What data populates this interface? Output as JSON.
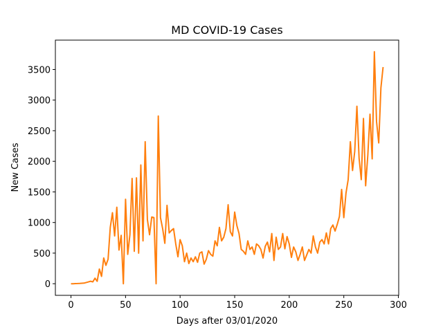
{
  "chart_data": {
    "type": "line",
    "title": "MD COVID-19 Cases",
    "xlabel": "Days after 03/01/2020",
    "ylabel": "New Cases",
    "color": "#ff7f0e",
    "x": [
      0,
      2,
      4,
      6,
      8,
      10,
      12,
      14,
      16,
      18,
      20,
      22,
      24,
      26,
      28,
      30,
      32,
      34,
      36,
      38,
      40,
      42,
      44,
      46,
      48,
      50,
      52,
      54,
      56,
      58,
      60,
      62,
      64,
      66,
      68,
      70,
      72,
      74,
      76,
      78,
      80,
      82,
      84,
      86,
      88,
      90,
      92,
      94,
      96,
      98,
      100,
      102,
      104,
      106,
      108,
      110,
      112,
      114,
      116,
      118,
      120,
      122,
      124,
      126,
      128,
      130,
      132,
      134,
      136,
      138,
      140,
      142,
      144,
      146,
      148,
      150,
      152,
      154,
      156,
      158,
      160,
      162,
      164,
      166,
      168,
      170,
      172,
      174,
      176,
      178,
      180,
      182,
      184,
      186,
      188,
      190,
      192,
      194,
      196,
      198,
      200,
      202,
      204,
      206,
      208,
      210,
      212,
      214,
      216,
      218,
      220,
      222,
      224,
      226,
      228,
      230,
      232,
      234,
      236,
      238,
      240,
      242,
      244,
      246,
      248,
      250,
      252,
      254,
      256,
      258,
      260,
      262,
      264,
      266,
      268,
      270,
      272,
      274,
      276,
      278,
      280,
      282,
      284,
      286
    ],
    "values": [
      0,
      0,
      2,
      3,
      5,
      8,
      10,
      20,
      30,
      40,
      30,
      90,
      40,
      240,
      120,
      420,
      300,
      400,
      920,
      1160,
      780,
      1250,
      550,
      790,
      0,
      1380,
      480,
      800,
      1720,
      530,
      1730,
      500,
      1940,
      700,
      2320,
      1050,
      800,
      1090,
      1080,
      0,
      2740,
      1080,
      900,
      660,
      1280,
      830,
      870,
      900,
      650,
      440,
      720,
      620,
      360,
      500,
      330,
      420,
      360,
      440,
      350,
      500,
      520,
      320,
      400,
      540,
      480,
      450,
      700,
      620,
      920,
      700,
      760,
      900,
      1290,
      850,
      780,
      1170,
      950,
      820,
      560,
      530,
      480,
      700,
      560,
      600,
      480,
      650,
      620,
      560,
      420,
      610,
      680,
      520,
      820,
      380,
      760,
      560,
      600,
      820,
      570,
      770,
      650,
      430,
      600,
      520,
      380,
      480,
      600,
      380,
      470,
      560,
      500,
      780,
      600,
      500,
      680,
      720,
      650,
      830,
      650,
      900,
      960,
      860,
      970,
      1100,
      1540,
      1080,
      1480,
      1700,
      2320,
      1850,
      2160,
      2900,
      2050,
      1700,
      2700,
      1600,
      2100,
      2770,
      2040,
      3790,
      2650,
      2300,
      3200,
      3540
    ],
    "xlim": [
      -14.3,
      300.3
    ],
    "ylim": [
      -190,
      3980
    ],
    "xticks": [
      0,
      50,
      100,
      150,
      200,
      250,
      300
    ],
    "yticks": [
      0,
      500,
      1000,
      1500,
      2000,
      2500,
      3000,
      3500
    ]
  }
}
